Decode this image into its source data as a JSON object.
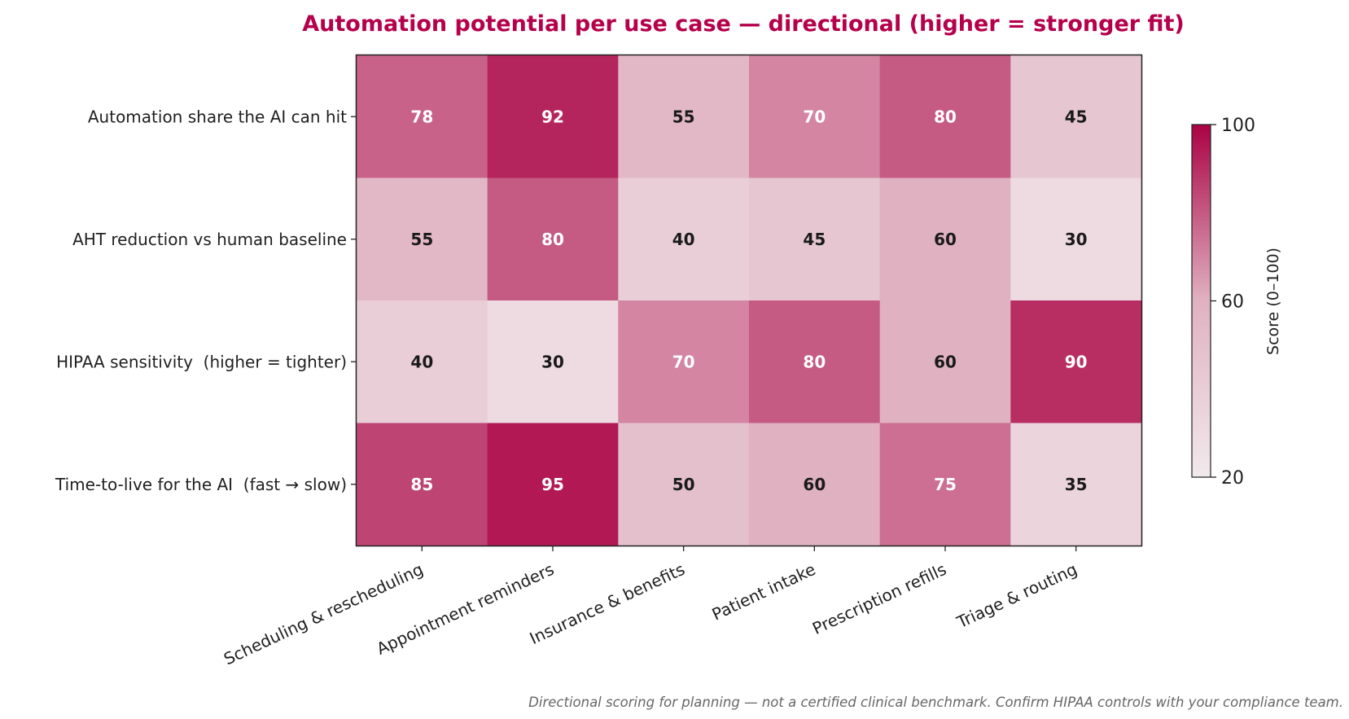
{
  "chart_data": {
    "type": "heatmap",
    "title": "Automation potential per use case — directional (higher = stronger fit)",
    "rows": [
      "Automation share the AI can hit",
      "AHT reduction vs human baseline",
      "HIPAA sensitivity  (higher = tighter)",
      "Time-to-live for the AI  (fast → slow)"
    ],
    "columns": [
      "Scheduling & rescheduling",
      "Appointment reminders",
      "Insurance & benefits",
      "Patient intake",
      "Prescription refills",
      "Triage & routing"
    ],
    "values": [
      [
        78,
        92,
        55,
        70,
        80,
        45
      ],
      [
        55,
        80,
        40,
        45,
        60,
        30
      ],
      [
        40,
        30,
        70,
        80,
        60,
        90
      ],
      [
        85,
        95,
        50,
        60,
        75,
        35
      ]
    ],
    "colorbar": {
      "label": "Score  (0–100)",
      "range": [
        20,
        100
      ],
      "ticks": [
        "20",
        "60",
        "100"
      ],
      "color_low": "#f1e9ec",
      "color_mid": "#e0b1c1",
      "color_high": "#aa0244"
    },
    "title_color": "#b5004b",
    "footnote": "Directional scoring for planning — not a certified clinical benchmark. Confirm HIPAA controls with your compliance team."
  }
}
